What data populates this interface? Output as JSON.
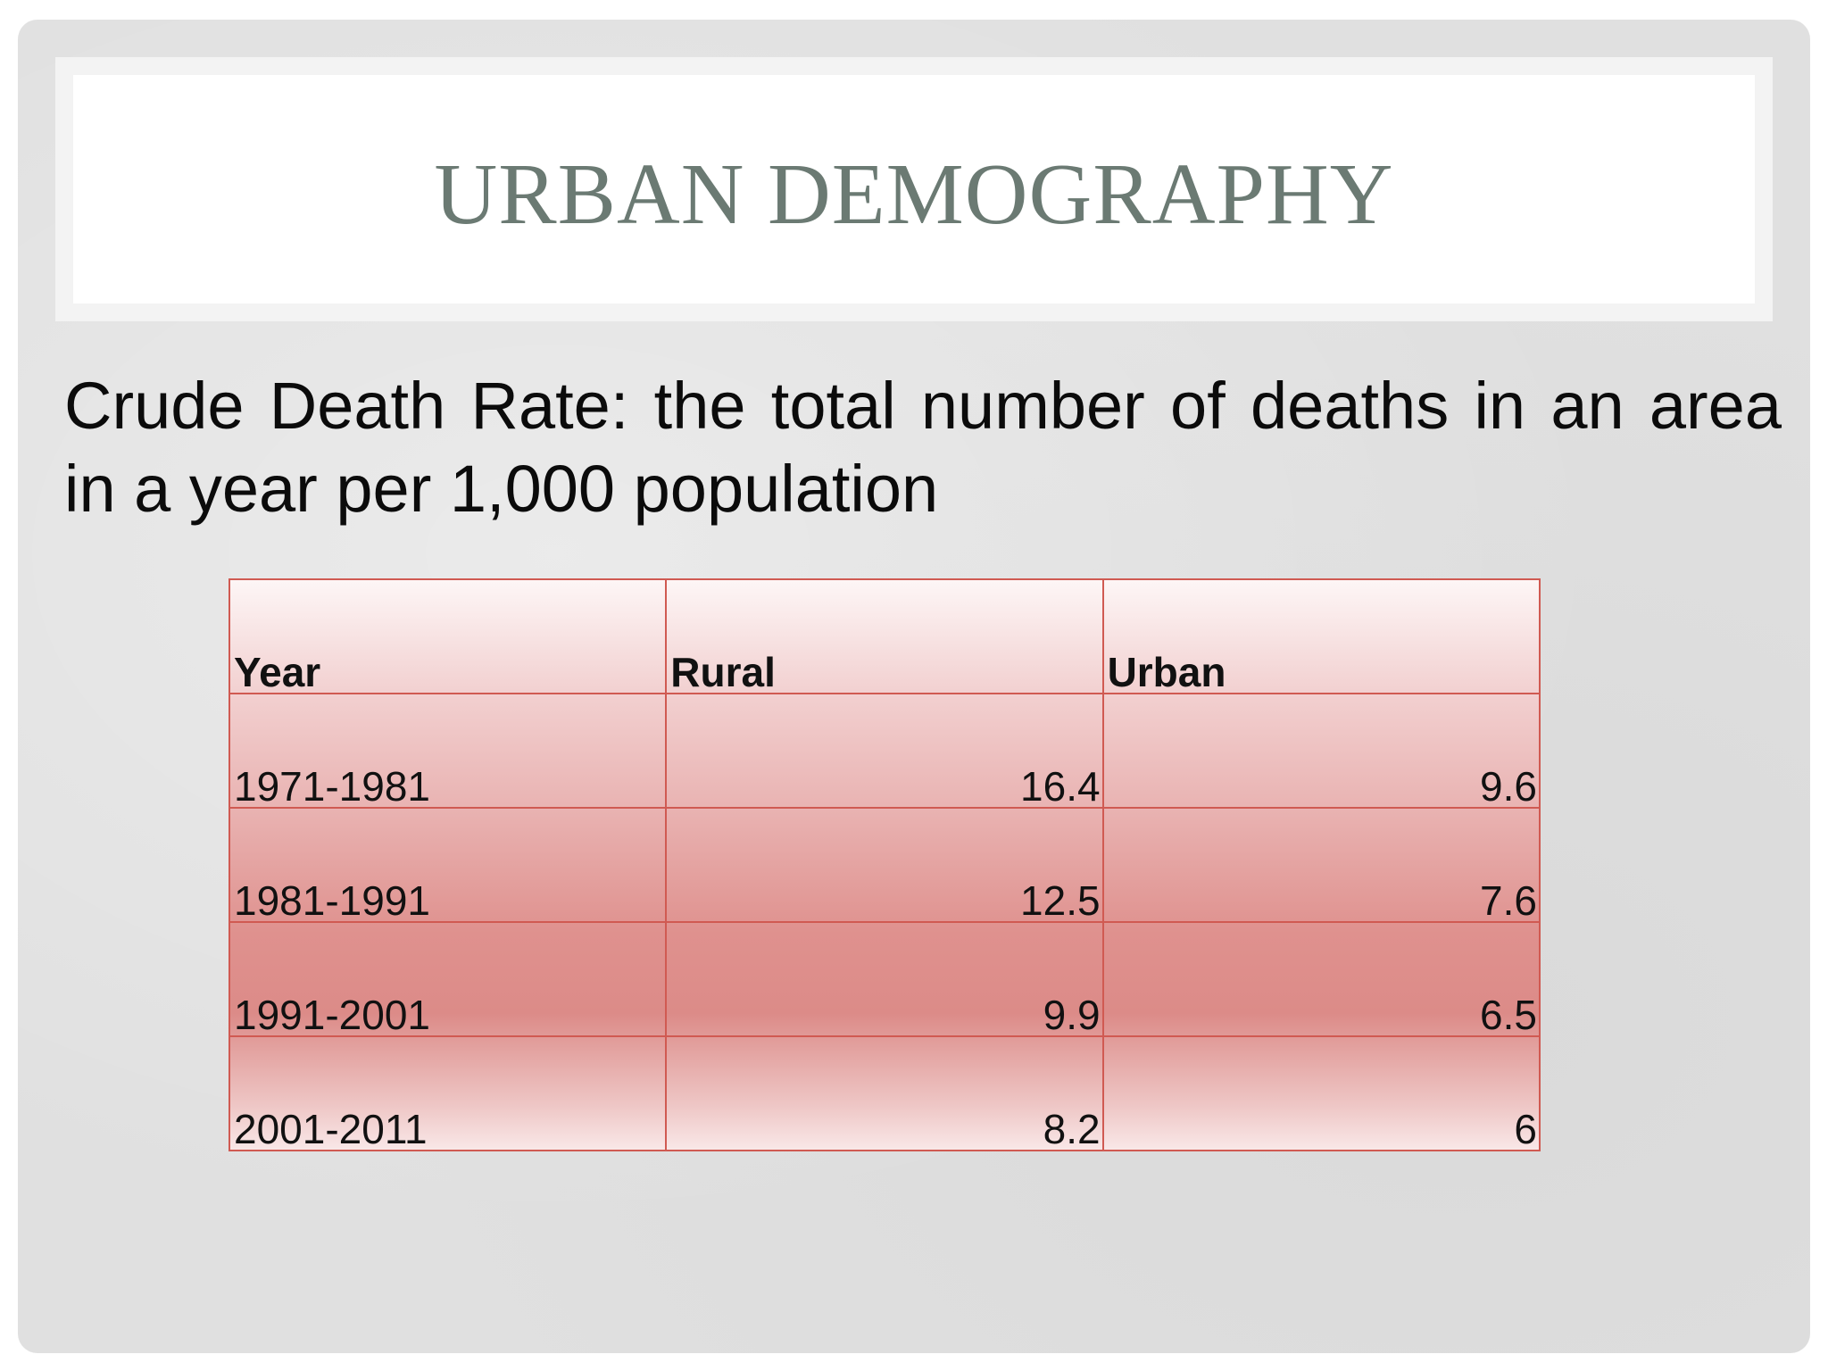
{
  "slide": {
    "title": "URBAN DEMOGRAPHY",
    "body_text": "Crude Death Rate: the total number of deaths in an area in a year per 1,000 population"
  },
  "table": {
    "headers": [
      "Year",
      "Rural",
      "Urban"
    ],
    "rows": [
      {
        "year": "1971-1981",
        "rural": "16.4",
        "urban": "9.6"
      },
      {
        "year": "1981-1991",
        "rural": "12.5",
        "urban": "7.6"
      },
      {
        "year": "1991-2001",
        "rural": "9.9",
        "urban": "6.5"
      },
      {
        "year": "2001-2011",
        "rural": "8.2",
        "urban": "6"
      }
    ]
  },
  "colors": {
    "title": "#6b7a73",
    "table_border": "#d05a52",
    "table_fill": "#df918e",
    "background": "#e0e0e0"
  }
}
